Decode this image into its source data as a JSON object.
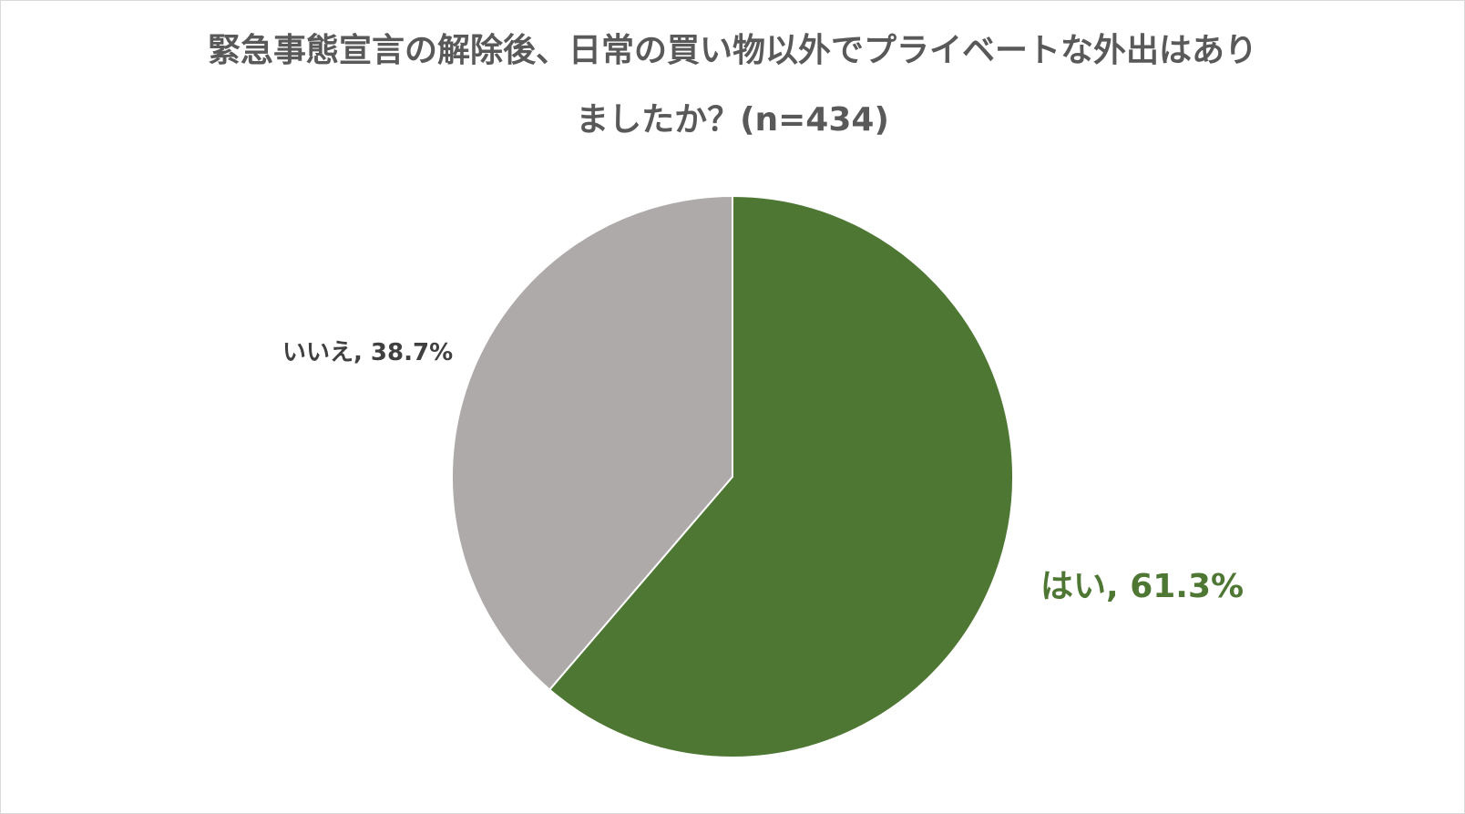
{
  "chart_data": {
    "type": "pie",
    "title_lines": [
      "緊急事態宣言の解除後、日常の買い物以外でプライベートな外出はあり",
      "ましたか？(n=434)"
    ],
    "slices": [
      {
        "name": "はい",
        "value": 61.3,
        "label": "はい, 61.3%",
        "color": "#4e7733",
        "label_color": "#4e7733"
      },
      {
        "name": "いいえ",
        "value": 38.7,
        "label": "いいえ, 38.7%",
        "color": "#aeaaaa",
        "label_color": "#404040"
      }
    ],
    "start": "12 o'clock",
    "direction": "clockwise",
    "legend": "none"
  }
}
